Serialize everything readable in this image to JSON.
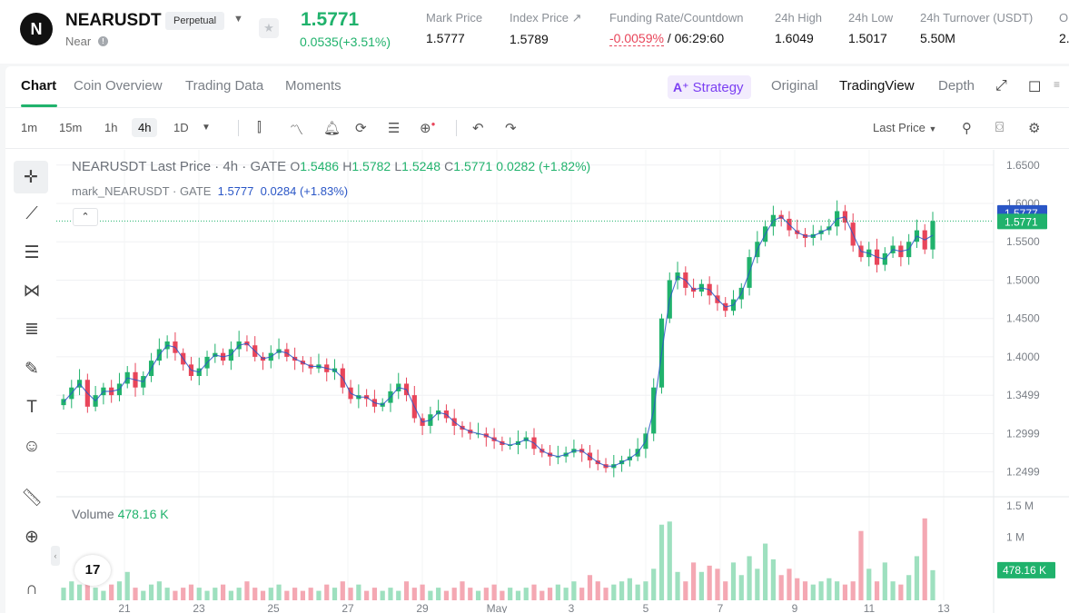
{
  "ticker": {
    "logo_glyph": "N",
    "symbol": "NEARUSDT",
    "contract_type": "Perpetual",
    "name": "Near",
    "last_price": "1.5771",
    "change": "0.0535(+3.51%)",
    "stats": [
      {
        "label": "Mark Price",
        "value": "1.5777"
      },
      {
        "label": "Index Price ↗",
        "value": "1.5789"
      },
      {
        "label": "Funding Rate/Countdown",
        "value_neg": "-0.0059%",
        "value": " / 06:29:60"
      },
      {
        "label": "24h High",
        "value": "1.6049"
      },
      {
        "label": "24h Low",
        "value": "1.5017"
      },
      {
        "label": "24h Turnover (USDT)",
        "value": "5.50M"
      },
      {
        "label": "O",
        "value": "2."
      }
    ]
  },
  "tabs": [
    "Chart",
    "Coin Overview",
    "Trading Data",
    "Moments"
  ],
  "views": {
    "strategy": "Strategy",
    "original": "Original",
    "tradingview": "TradingView",
    "depth": "Depth"
  },
  "toolbar": {
    "timeframes": [
      "1m",
      "15m",
      "1h",
      "4h",
      "1D"
    ],
    "selected_timeframe": "4h",
    "price_source": "Last Price"
  },
  "legend": {
    "title": "NEARUSDT Last Price · 4h · GATE",
    "o_label": "O",
    "o": "1.5486",
    "h_label": "H",
    "h": "1.5782",
    "l_label": "L",
    "l": "1.5248",
    "c_label": "C",
    "c": "1.5771",
    "delta": "0.0282 (+1.82%)",
    "mark_series": "mark_NEARUSDT · GATE",
    "mark_value": "1.5777",
    "mark_delta": "0.0284 (+1.83%)"
  },
  "volume": {
    "label": "Volume",
    "value": "478.16 K"
  },
  "tv_logo": "17",
  "colors": {
    "up": "#20b26c",
    "down": "#e8455a",
    "up_soft": "#9ee0bf",
    "down_soft": "#f4a8b3",
    "mark": "#2a56c6"
  },
  "chart_data": {
    "type": "candlestick",
    "price_axis": [
      "1.6500",
      "1.6000",
      "1.5500",
      "1.5000",
      "1.4500",
      "1.4000",
      "1.3499",
      "1.2999",
      "1.2499"
    ],
    "price_ylim": [
      1.2199,
      1.6699
    ],
    "last_price_tag": "1.5771",
    "mark_price_tag": "1.5777",
    "volume_axis": [
      "1.5 M",
      "1 M"
    ],
    "volume_ylim": [
      0,
      1.6
    ],
    "volume_tag": "478.16 K",
    "x_ticks": [
      "21",
      "23",
      "25",
      "27",
      "29",
      "May",
      "3",
      "5",
      "7",
      "9",
      "11",
      "13"
    ],
    "close_path": [
      1.345,
      1.36,
      1.37,
      1.335,
      1.35,
      1.36,
      1.35,
      1.365,
      1.38,
      1.36,
      1.375,
      1.395,
      1.41,
      1.42,
      1.405,
      1.39,
      1.375,
      1.385,
      1.4,
      1.405,
      1.395,
      1.41,
      1.42,
      1.415,
      1.4,
      1.395,
      1.405,
      1.41,
      1.4,
      1.395,
      1.39,
      1.385,
      1.39,
      1.38,
      1.385,
      1.36,
      1.345,
      1.35,
      1.345,
      1.335,
      1.34,
      1.355,
      1.365,
      1.35,
      1.32,
      1.31,
      1.325,
      1.33,
      1.32,
      1.31,
      1.305,
      1.3,
      1.3,
      1.295,
      1.29,
      1.285,
      1.285,
      1.29,
      1.295,
      1.28,
      1.275,
      1.27,
      1.27,
      1.275,
      1.28,
      1.275,
      1.265,
      1.26,
      1.255,
      1.26,
      1.265,
      1.27,
      1.28,
      1.3,
      1.36,
      1.45,
      1.5,
      1.51,
      1.49,
      1.485,
      1.495,
      1.48,
      1.47,
      1.46,
      1.475,
      1.49,
      1.53,
      1.55,
      1.57,
      1.585,
      1.58,
      1.565,
      1.56,
      1.555,
      1.56,
      1.565,
      1.57,
      1.59,
      1.575,
      1.545,
      1.53,
      1.54,
      1.52,
      1.535,
      1.545,
      1.53,
      1.55,
      1.565,
      1.54,
      1.5771
    ],
    "volume_path": [
      0.2,
      0.3,
      0.25,
      0.35,
      0.2,
      0.15,
      0.25,
      0.3,
      0.45,
      0.2,
      0.15,
      0.25,
      0.3,
      0.2,
      0.15,
      0.2,
      0.25,
      0.2,
      0.15,
      0.2,
      0.25,
      0.15,
      0.2,
      0.3,
      0.2,
      0.15,
      0.2,
      0.25,
      0.15,
      0.2,
      0.15,
      0.2,
      0.15,
      0.25,
      0.2,
      0.3,
      0.2,
      0.25,
      0.15,
      0.2,
      0.15,
      0.2,
      0.15,
      0.3,
      0.2,
      0.25,
      0.15,
      0.2,
      0.15,
      0.2,
      0.3,
      0.2,
      0.15,
      0.2,
      0.25,
      0.15,
      0.2,
      0.15,
      0.2,
      0.25,
      0.15,
      0.2,
      0.25,
      0.2,
      0.3,
      0.2,
      0.4,
      0.3,
      0.2,
      0.25,
      0.3,
      0.35,
      0.25,
      0.3,
      0.5,
      1.2,
      1.25,
      0.45,
      0.3,
      0.6,
      0.45,
      0.55,
      0.5,
      0.3,
      0.6,
      0.4,
      0.7,
      0.5,
      0.9,
      0.65,
      0.4,
      0.5,
      0.35,
      0.3,
      0.25,
      0.3,
      0.35,
      0.3,
      0.25,
      0.3,
      1.1,
      0.5,
      0.3,
      0.6,
      0.3,
      0.25,
      0.4,
      0.7,
      1.3,
      0.478
    ]
  }
}
